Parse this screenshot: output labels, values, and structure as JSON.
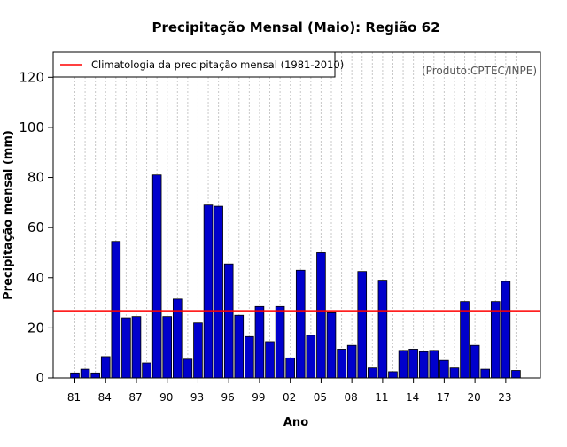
{
  "chart_data": {
    "type": "bar",
    "title": "Precipitação Mensal (Maio): Região 62",
    "xlabel": "Ano",
    "ylabel": "Precipitação mensal (mm)",
    "ylim": [
      0,
      130
    ],
    "yticks": [
      0,
      20,
      40,
      60,
      80,
      100,
      120
    ],
    "categories": [
      "1981",
      "1982",
      "1983",
      "1984",
      "1985",
      "1986",
      "1987",
      "1988",
      "1989",
      "1990",
      "1991",
      "1992",
      "1993",
      "1994",
      "1995",
      "1996",
      "1997",
      "1998",
      "1999",
      "2000",
      "2001",
      "2002",
      "2003",
      "2004",
      "2005",
      "2006",
      "2007",
      "2008",
      "2009",
      "2010",
      "2011",
      "2012",
      "2013",
      "2014",
      "2015",
      "2016",
      "2017",
      "2018",
      "2019",
      "2020",
      "2021",
      "2022",
      "2023",
      "2024"
    ],
    "tick_labels": [
      "81",
      "",
      "",
      "84",
      "",
      "",
      "87",
      "",
      "",
      "90",
      "",
      "",
      "93",
      "",
      "",
      "96",
      "",
      "",
      "99",
      "",
      "",
      "02",
      "",
      "",
      "05",
      "",
      "",
      "08",
      "",
      "",
      "11",
      "",
      "",
      "14",
      "",
      "",
      "17",
      "",
      "",
      "20",
      "",
      "",
      "23",
      ""
    ],
    "series": [
      {
        "name": "Precipitação mensal",
        "color": "#0000cc",
        "values": [
          2,
          3.5,
          2,
          8.5,
          54.5,
          24,
          24.5,
          6,
          81,
          24.5,
          31.5,
          7.5,
          22,
          69,
          68.5,
          45.5,
          25,
          16.5,
          28.5,
          14.5,
          28.5,
          8,
          43,
          17,
          50,
          26,
          11.5,
          13,
          42.5,
          4,
          39,
          2.5,
          11,
          11.5,
          10.5,
          11,
          7,
          4,
          30.5,
          13,
          3.5,
          30.5,
          38.5,
          3
        ]
      }
    ],
    "climatology": {
      "label": "Climatologia da precipitação mensal (1981-2010)",
      "value": 26.8,
      "color": "#ff0000"
    },
    "credit": "(Produto:CPTEC/INPE)",
    "grid": "vertical-dotted",
    "legend_position": "top-left"
  }
}
